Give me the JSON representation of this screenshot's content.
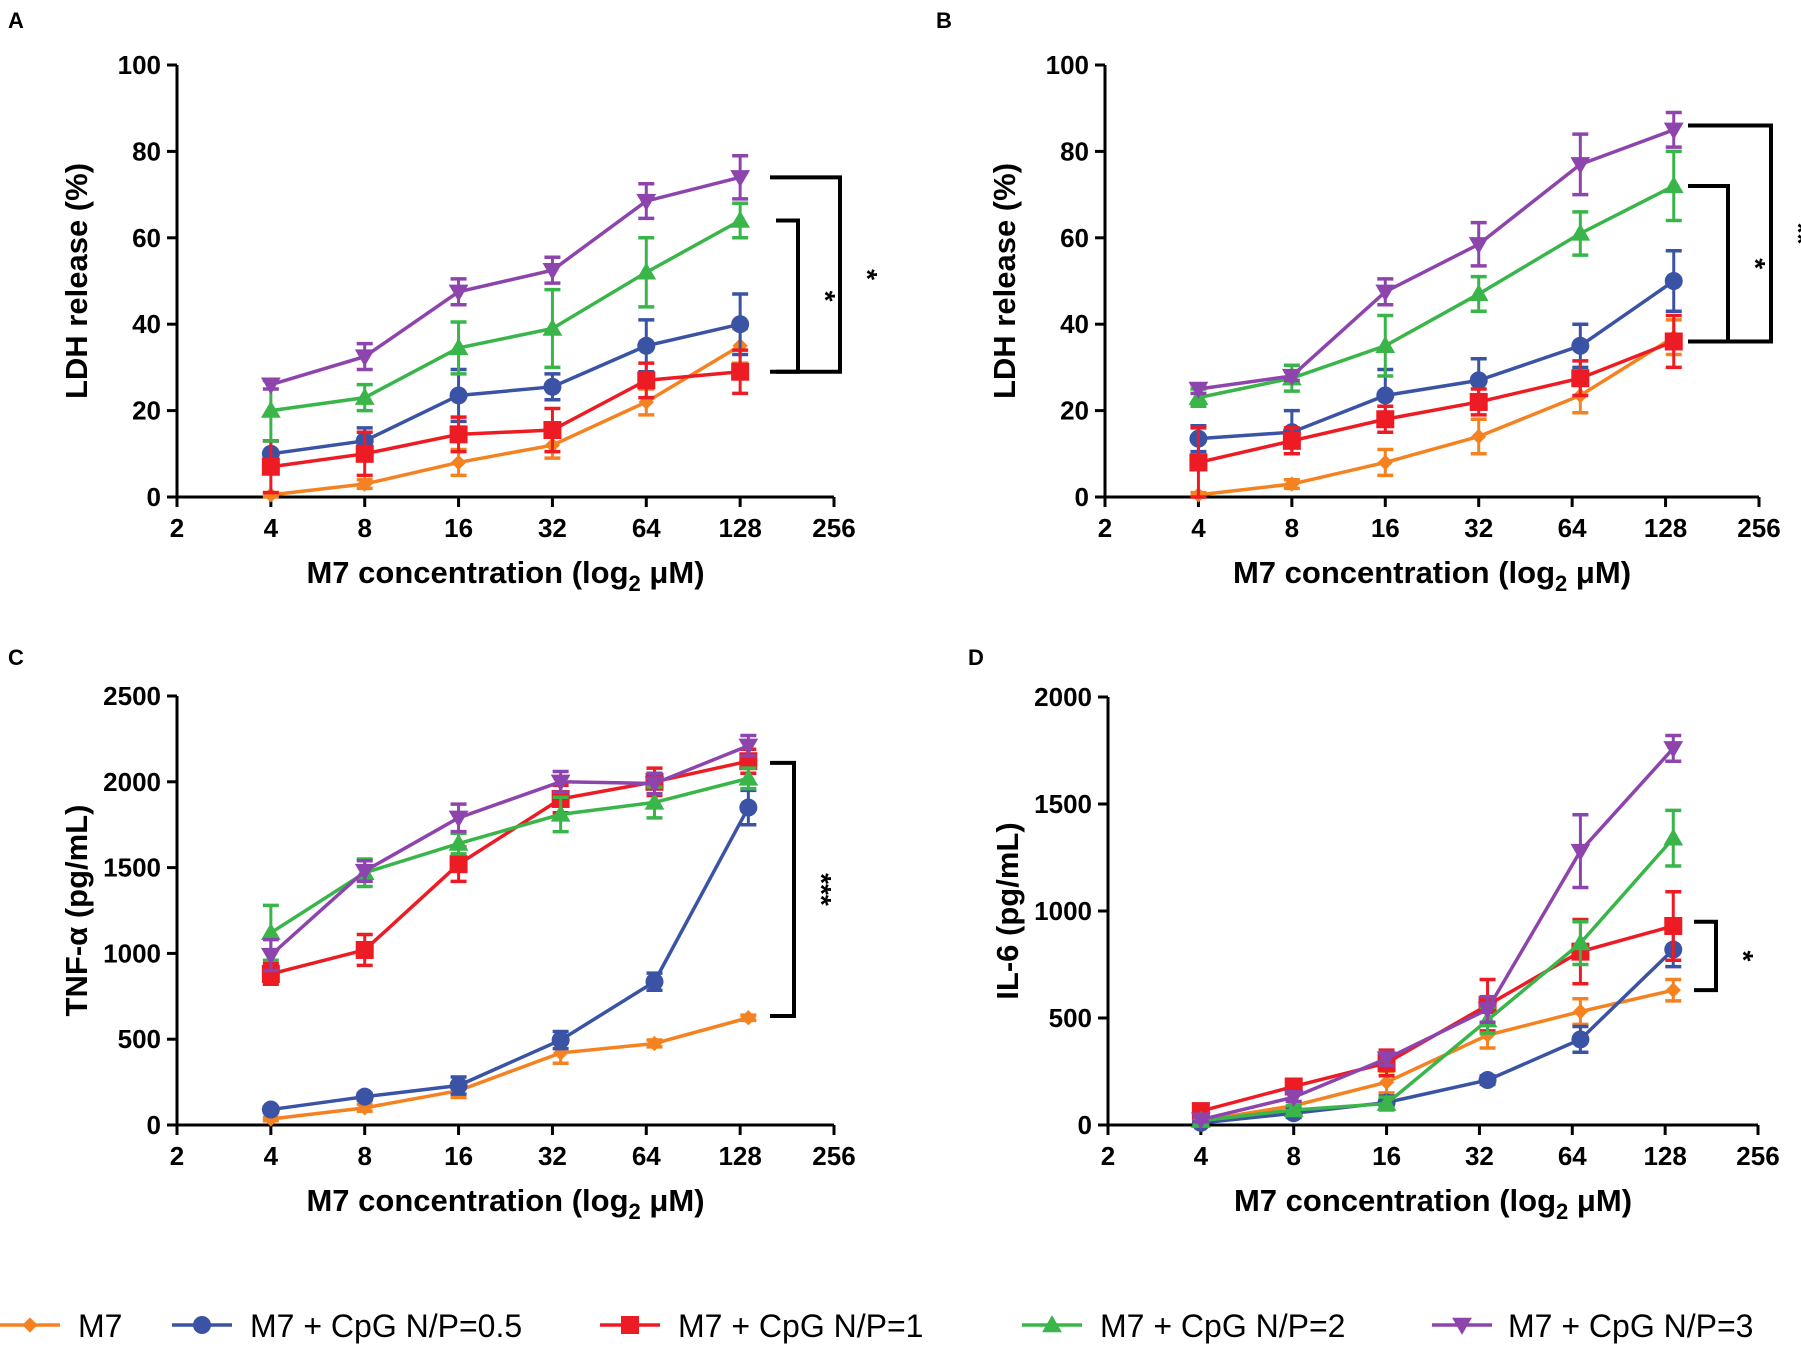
{
  "figure": {
    "legend": [
      {
        "name": "M7",
        "color": "#f58220",
        "marker": "diamond"
      },
      {
        "name": "M7 + CpG N/P=0.5",
        "color": "#3a53a4",
        "marker": "circle"
      },
      {
        "name": "M7 + CpG N/P=1",
        "color": "#ed1c24",
        "marker": "square"
      },
      {
        "name": "M7 + CpG N/P=2",
        "color": "#39b54a",
        "marker": "triangle-up"
      },
      {
        "name": "M7 + CpG N/P=3",
        "color": "#8e44ad",
        "marker": "triangle-down"
      }
    ]
  },
  "chart_data": [
    {
      "panel": "A",
      "type": "line",
      "xscale": "log2",
      "xlabel": "M7 concentration (log",
      "xlabel_sub": "2",
      "xlabel_unit": " μM)",
      "ylabel": "LDH release (%)",
      "xlim": [
        2,
        256
      ],
      "ylim": [
        0,
        100
      ],
      "xticks": [
        2,
        4,
        8,
        16,
        32,
        64,
        128,
        256
      ],
      "xtick_labels": [
        "2",
        "4",
        "8",
        "16",
        "32",
        "64",
        "128",
        "256"
      ],
      "yticks": [
        0,
        20,
        40,
        60,
        80,
        100
      ],
      "ytick_labels": [
        "0",
        "20",
        "40",
        "60",
        "80",
        "100"
      ],
      "x": [
        4,
        8,
        16,
        32,
        64,
        128
      ],
      "series": [
        {
          "name": "M7",
          "values": [
            0.5,
            3,
            8,
            12,
            22,
            35
          ],
          "errors": [
            0.5,
            1,
            3,
            3,
            3,
            4
          ]
        },
        {
          "name": "M7 + CpG N/P=0.5",
          "values": [
            10,
            13,
            23.5,
            25.5,
            35,
            40
          ],
          "errors": [
            3,
            3,
            6,
            3,
            6,
            7
          ]
        },
        {
          "name": "M7 + CpG N/P=1",
          "values": [
            7,
            10,
            14.5,
            15.5,
            27,
            29
          ],
          "errors": [
            6,
            5,
            4,
            5,
            4,
            5
          ]
        },
        {
          "name": "M7 + CpG N/P=2",
          "values": [
            20,
            23,
            34.5,
            39,
            52,
            64
          ],
          "errors": [
            7,
            3,
            6,
            9,
            8,
            4
          ]
        },
        {
          "name": "M7 + CpG N/P=3",
          "values": [
            26,
            32.5,
            47.5,
            52.5,
            68.5,
            74
          ],
          "errors": [
            1,
            3,
            3,
            3,
            4,
            5
          ]
        }
      ],
      "significance": [
        {
          "label": "*",
          "from": 64,
          "to": 29
        },
        {
          "label": "*",
          "from": 74,
          "to": 29
        }
      ]
    },
    {
      "panel": "B",
      "type": "line",
      "xscale": "log2",
      "xlabel": "M7 concentration (log",
      "xlabel_sub": "2",
      "xlabel_unit": " μM)",
      "ylabel": "LDH release (%)",
      "xlim": [
        2,
        256
      ],
      "ylim": [
        0,
        100
      ],
      "xticks": [
        2,
        4,
        8,
        16,
        32,
        64,
        128,
        256
      ],
      "xtick_labels": [
        "2",
        "4",
        "8",
        "16",
        "32",
        "64",
        "128",
        "256"
      ],
      "yticks": [
        0,
        20,
        40,
        60,
        80,
        100
      ],
      "ytick_labels": [
        "0",
        "20",
        "40",
        "60",
        "80",
        "100"
      ],
      "x": [
        4,
        8,
        16,
        32,
        68,
        136
      ],
      "series": [
        {
          "name": "M7",
          "values": [
            0.5,
            3,
            8,
            14,
            23.5,
            37
          ],
          "errors": [
            0.5,
            1,
            3,
            4,
            4,
            4
          ]
        },
        {
          "name": "M7 + CpG N/P=0.5",
          "values": [
            13.5,
            15,
            23.5,
            27,
            35,
            50
          ],
          "errors": [
            3,
            5,
            6,
            5,
            5,
            7
          ]
        },
        {
          "name": "M7 + CpG N/P=1",
          "values": [
            8,
            13,
            18,
            22,
            27.5,
            36
          ],
          "errors": [
            8,
            3,
            3,
            3,
            4,
            6
          ]
        },
        {
          "name": "M7 + CpG N/P=2",
          "values": [
            23,
            27.5,
            35,
            47,
            61,
            72
          ],
          "errors": [
            2,
            3,
            7,
            4,
            5,
            8
          ]
        },
        {
          "name": "M7 + CpG N/P=3",
          "values": [
            25,
            28,
            47.5,
            58.5,
            77,
            85
          ],
          "errors": [
            1,
            1,
            3,
            5,
            7,
            4
          ]
        }
      ],
      "significance": [
        {
          "label": "*",
          "from": 72,
          "to": 36
        },
        {
          "label": "**",
          "from": 86,
          "to": 36
        }
      ]
    },
    {
      "panel": "C",
      "type": "line",
      "xscale": "log2",
      "xlabel": "M7 concentration (log",
      "xlabel_sub": "2",
      "xlabel_unit": " μM)",
      "ylabel": "TNF-α (pg/mL)",
      "xlim": [
        2,
        256
      ],
      "ylim": [
        0,
        2500
      ],
      "xticks": [
        2,
        4,
        8,
        16,
        32,
        64,
        128,
        256
      ],
      "xtick_labels": [
        "2",
        "4",
        "8",
        "16",
        "32",
        "64",
        "128",
        "256"
      ],
      "yticks": [
        0,
        500,
        1000,
        1500,
        2000,
        2500
      ],
      "ytick_labels": [
        "0",
        "500",
        "1000",
        "1500",
        "2000",
        "2500"
      ],
      "x": [
        4,
        8,
        16,
        34,
        68,
        136
      ],
      "series": [
        {
          "name": "M7",
          "values": [
            35,
            100,
            200,
            420,
            475,
            625
          ],
          "errors": [
            10,
            20,
            40,
            60,
            20,
            15
          ]
        },
        {
          "name": "M7 + CpG N/P=0.5",
          "values": [
            90,
            165,
            230,
            495,
            835,
            1850
          ],
          "errors": [
            15,
            20,
            50,
            50,
            50,
            100
          ]
        },
        {
          "name": "M7 + CpG N/P=1",
          "values": [
            880,
            1020,
            1520,
            1900,
            2000,
            2120
          ],
          "errors": [
            60,
            90,
            100,
            80,
            80,
            70
          ]
        },
        {
          "name": "M7 + CpG N/P=2",
          "values": [
            1120,
            1470,
            1640,
            1810,
            1880,
            2020
          ],
          "errors": [
            160,
            80,
            60,
            100,
            90,
            60
          ]
        },
        {
          "name": "M7 + CpG N/P=3",
          "values": [
            990,
            1480,
            1790,
            2000,
            1990,
            2210
          ],
          "errors": [
            90,
            60,
            80,
            60,
            60,
            60
          ]
        }
      ],
      "significance": [
        {
          "label": "***",
          "from": 2110,
          "to": 635
        }
      ]
    },
    {
      "panel": "D",
      "type": "line",
      "xscale": "log2",
      "xlabel": "M7 concentration (log",
      "xlabel_sub": "2",
      "xlabel_unit": " μM)",
      "ylabel": "IL-6 (pg/mL)",
      "xlim": [
        2,
        256
      ],
      "ylim": [
        0,
        2000
      ],
      "xticks": [
        2,
        4,
        8,
        16,
        32,
        64,
        128,
        256
      ],
      "xtick_labels": [
        "2",
        "4",
        "8",
        "16",
        "32",
        "64",
        "128",
        "256"
      ],
      "yticks": [
        0,
        500,
        1000,
        1500,
        2000
      ],
      "ytick_labels": [
        "0",
        "500",
        "1000",
        "1500",
        "2000"
      ],
      "x": [
        4,
        8,
        16,
        34,
        68,
        136
      ],
      "series": [
        {
          "name": "M7",
          "values": [
            20,
            90,
            200,
            420,
            530,
            630
          ],
          "errors": [
            10,
            20,
            50,
            60,
            60,
            50
          ]
        },
        {
          "name": "M7 + CpG N/P=0.5",
          "values": [
            10,
            55,
            105,
            210,
            400,
            820
          ],
          "errors": [
            10,
            20,
            30,
            20,
            60,
            80
          ]
        },
        {
          "name": "M7 + CpG N/P=1",
          "values": [
            65,
            180,
            290,
            560,
            810,
            930
          ],
          "errors": [
            30,
            30,
            60,
            120,
            150,
            160
          ]
        },
        {
          "name": "M7 + CpG N/P=2",
          "values": [
            20,
            70,
            100,
            490,
            850,
            1340
          ],
          "errors": [
            10,
            20,
            30,
            60,
            100,
            130
          ]
        },
        {
          "name": "M7 + CpG N/P=3",
          "values": [
            25,
            130,
            310,
            540,
            1280,
            1760
          ],
          "errors": [
            10,
            20,
            30,
            60,
            170,
            60
          ]
        }
      ],
      "significance": [
        {
          "label": "*",
          "from": 950,
          "to": 630
        }
      ]
    }
  ]
}
